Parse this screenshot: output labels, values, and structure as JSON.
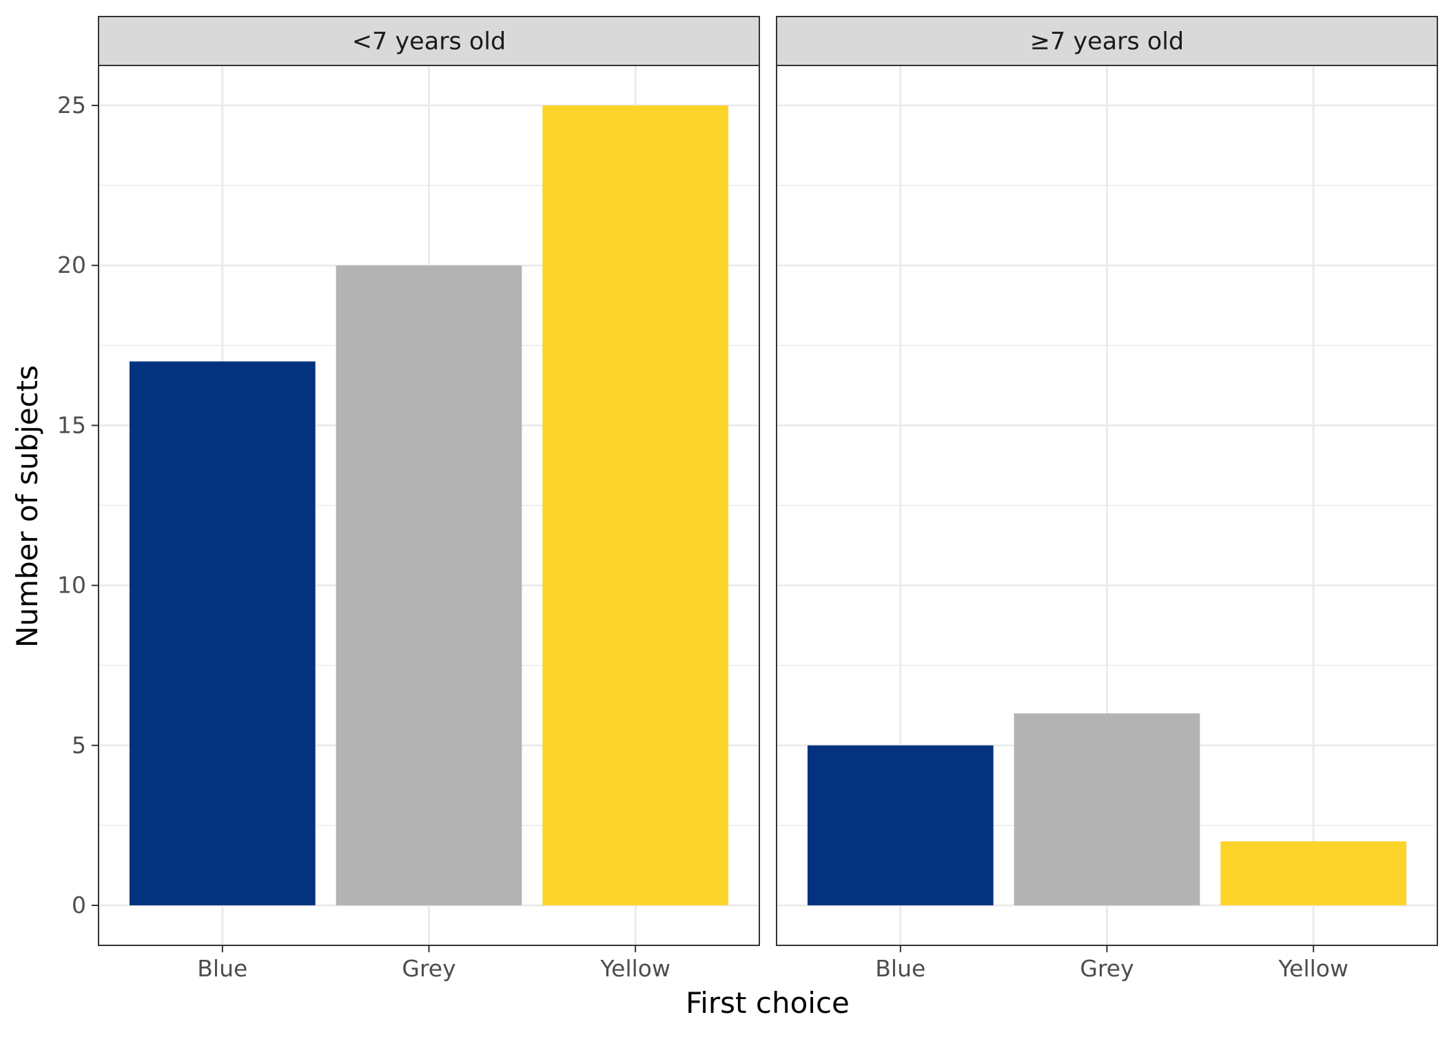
{
  "chart_data": {
    "type": "bar",
    "xlabel": "First choice",
    "ylabel": "Number of subjects",
    "categories": [
      "Blue",
      "Grey",
      "Yellow"
    ],
    "colors": {
      "Blue": "#03337F",
      "Grey": "#B3B3B3",
      "Yellow": "#FDD42A"
    },
    "facets": [
      {
        "label": "<7 years old",
        "values": [
          17,
          20,
          25
        ]
      },
      {
        "label": "≥7 years old",
        "values": [
          5,
          6,
          2
        ]
      }
    ],
    "ylim": [
      -1.25,
      26.25
    ],
    "yticks": [
      "0",
      "5",
      "10",
      "15",
      "20",
      "25"
    ],
    "grid": true,
    "legend": "none"
  }
}
